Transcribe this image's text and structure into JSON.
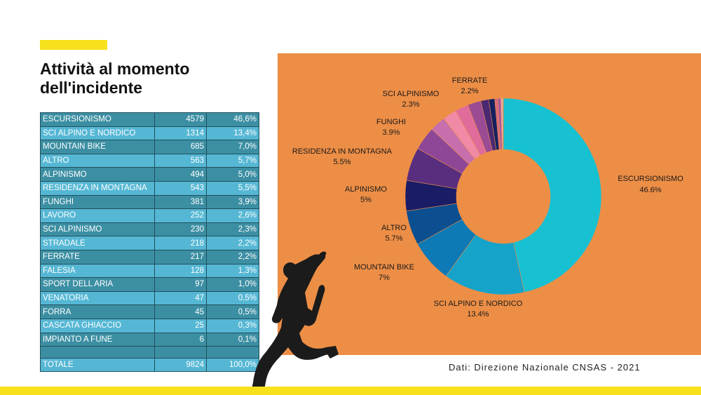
{
  "title_line1": "Attività al momento",
  "title_line2": "dell'incidente",
  "source": "Dati: Direzione Nazionale CNSAS - 2021",
  "table": {
    "rows": [
      {
        "label": "ESCURSIONISMO",
        "count": "4579",
        "pct": "46,6%"
      },
      {
        "label": "SCI ALPINO E NORDICO",
        "count": "1314",
        "pct": "13,4%"
      },
      {
        "label": "MOUNTAIN BIKE",
        "count": "685",
        "pct": "7,0%"
      },
      {
        "label": "ALTRO",
        "count": "563",
        "pct": "5,7%"
      },
      {
        "label": "ALPINISMO",
        "count": "494",
        "pct": "5,0%"
      },
      {
        "label": "RESIDENZA IN MONTAGNA",
        "count": "543",
        "pct": "5,5%"
      },
      {
        "label": "FUNGHI",
        "count": "381",
        "pct": "3,9%"
      },
      {
        "label": "LAVORO",
        "count": "252",
        "pct": "2,6%"
      },
      {
        "label": "SCI ALPINISMO",
        "count": "230",
        "pct": "2,3%"
      },
      {
        "label": "STRADALE",
        "count": "218",
        "pct": "2,2%"
      },
      {
        "label": "FERRATE",
        "count": "217",
        "pct": "2,2%"
      },
      {
        "label": "FALESIA",
        "count": "128",
        "pct": "1,3%"
      },
      {
        "label": "SPORT DELL ARIA",
        "count": "97",
        "pct": "1,0%"
      },
      {
        "label": "VENATORIA",
        "count": "47",
        "pct": "0,5%"
      },
      {
        "label": "FORRA",
        "count": "45",
        "pct": "0,5%"
      },
      {
        "label": "CASCATA GHIACCIO",
        "count": "25",
        "pct": "0,3%"
      },
      {
        "label": "IMPIANTO A FUNE",
        "count": "6",
        "pct": "0,1%"
      }
    ],
    "total": {
      "label": "TOTALE",
      "count": "9824",
      "pct": "100,0%"
    }
  },
  "chart_data": {
    "type": "pie",
    "title": "",
    "slices": [
      {
        "name": "ESCURSIONISMO",
        "value": 46.6,
        "label": "46.6%",
        "color": "#17c1d1"
      },
      {
        "name": "SCI ALPINO E NORDICO",
        "value": 13.4,
        "label": "13.4%",
        "color": "#16a3c9"
      },
      {
        "name": "MOUNTAIN BIKE",
        "value": 7.0,
        "label": "7%",
        "color": "#0d79b5"
      },
      {
        "name": "ALTRO",
        "value": 5.7,
        "label": "5.7%",
        "color": "#0b4f90"
      },
      {
        "name": "ALPINISMO",
        "value": 5.0,
        "label": "5%",
        "color": "#1a1c66"
      },
      {
        "name": "RESIDENZA IN MONTAGNA",
        "value": 5.5,
        "label": "5.5%",
        "color": "#5a2e7e"
      },
      {
        "name": "FUNGHI",
        "value": 3.9,
        "label": "3.9%",
        "color": "#8e4797"
      },
      {
        "name": "LAVORO",
        "value": 2.6,
        "label": "",
        "color": "#c76fad"
      },
      {
        "name": "SCI ALPINISMO",
        "value": 2.3,
        "label": "2.3%",
        "color": "#f08aa6"
      },
      {
        "name": "STRADALE",
        "value": 2.2,
        "label": "",
        "color": "#e06c9c"
      },
      {
        "name": "FERRATE",
        "value": 2.2,
        "label": "2.2%",
        "color": "#9b4b93"
      },
      {
        "name": "FALESIA",
        "value": 1.3,
        "label": "",
        "color": "#4a2872"
      },
      {
        "name": "SPORT DELL ARIA",
        "value": 1.0,
        "label": "",
        "color": "#15205f"
      },
      {
        "name": "VENATORIA",
        "value": 0.5,
        "label": "",
        "color": "#d86a7c"
      },
      {
        "name": "FORRA",
        "value": 0.5,
        "label": "",
        "color": "#a55aa0"
      },
      {
        "name": "CASCATA GHIACCIO",
        "value": 0.3,
        "label": "",
        "color": "#e8b0c0"
      },
      {
        "name": "IMPIANTO A FUNE",
        "value": 0.1,
        "label": "",
        "color": "#f5c6a0"
      }
    ]
  }
}
